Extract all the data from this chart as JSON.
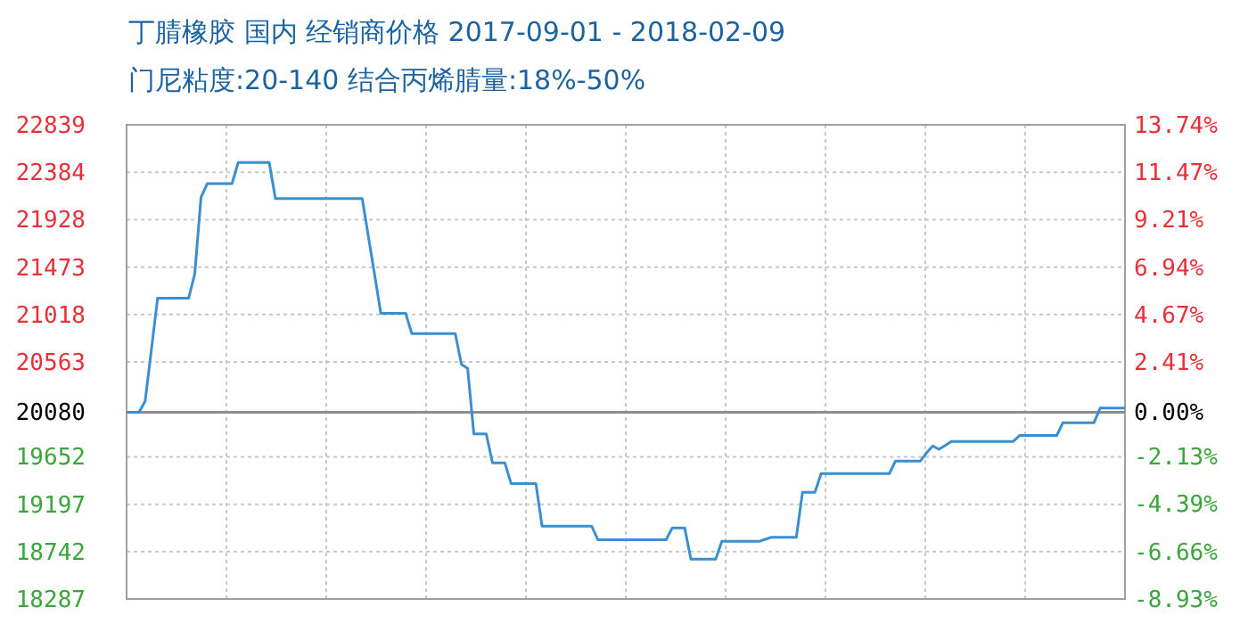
{
  "chart_data": {
    "type": "line",
    "title": "丁腈橡胶 国内 经销商价格 2017-09-01 - 2018-02-09",
    "subtitle": "门尼粘度:20-140 结合丙烯腈量:18%-50%",
    "categories": [
      null,
      null,
      null,
      null,
      null,
      null,
      null,
      null,
      null,
      null,
      null,
      null,
      null,
      null,
      null,
      null,
      null,
      null,
      null,
      null,
      null,
      null,
      null,
      null,
      null,
      null,
      null,
      null,
      null,
      null,
      null,
      null,
      null,
      null,
      null,
      null,
      null,
      null,
      null,
      null,
      null,
      null,
      null,
      null,
      null,
      null,
      null,
      null,
      null,
      null,
      null,
      null,
      null,
      null,
      null,
      null,
      null,
      null,
      null,
      null,
      null,
      null,
      null,
      null,
      null,
      null,
      null,
      null,
      null,
      null,
      null,
      null,
      null,
      null,
      null,
      null,
      null,
      null,
      null,
      null,
      null,
      null,
      null,
      null,
      null,
      null,
      null,
      null,
      null,
      null,
      null,
      null,
      null,
      null,
      null,
      null,
      null,
      null,
      null,
      null,
      null,
      null,
      null,
      null,
      null,
      null,
      null,
      null,
      null,
      null,
      null,
      null,
      null,
      null,
      null,
      null,
      null,
      null,
      null,
      null,
      null,
      null,
      null,
      null,
      null,
      null,
      null,
      null,
      null,
      null,
      null,
      null,
      null,
      null,
      null,
      null,
      null,
      null,
      null,
      null,
      null,
      null,
      null,
      null,
      null,
      null,
      null,
      null,
      null,
      null,
      null,
      null,
      null,
      null,
      null,
      null,
      null,
      null,
      null,
      null,
      null,
      null
    ],
    "series": [
      {
        "color": "#3a8fd0",
        "values": [
          20080,
          20080,
          20080,
          20187,
          20680,
          21174,
          21174,
          21174,
          21174,
          21174,
          21174,
          21410,
          22142,
          22274,
          22274,
          22274,
          22274,
          22274,
          22477,
          22477,
          22477,
          22477,
          22477,
          22477,
          22130,
          22130,
          22130,
          22130,
          22130,
          22130,
          22130,
          22130,
          22130,
          22130,
          22130,
          22130,
          22130,
          22130,
          22130,
          21765,
          21400,
          21030,
          21030,
          21030,
          21030,
          21030,
          20835,
          20835,
          20835,
          20835,
          20835,
          20835,
          20835,
          20835,
          20540,
          20500,
          19872,
          19872,
          19872,
          19595,
          19595,
          19595,
          19396,
          19396,
          19396,
          19396,
          19396,
          18987,
          18987,
          18987,
          18987,
          18987,
          18987,
          18987,
          18987,
          18987,
          18856,
          18856,
          18856,
          18856,
          18856,
          18856,
          18856,
          18856,
          18856,
          18856,
          18856,
          18856,
          18970,
          18970,
          18970,
          18670,
          18670,
          18670,
          18670,
          18670,
          18840,
          18840,
          18840,
          18840,
          18840,
          18840,
          18840,
          18860,
          18880,
          18880,
          18880,
          18880,
          18880,
          19311,
          19311,
          19311,
          19491,
          19491,
          19491,
          19491,
          19491,
          19491,
          19491,
          19491,
          19491,
          19491,
          19491,
          19491,
          19612,
          19612,
          19612,
          19612,
          19612,
          19690,
          19757,
          19724,
          19760,
          19800,
          19800,
          19800,
          19800,
          19800,
          19800,
          19800,
          19800,
          19800,
          19800,
          19800,
          19857,
          19857,
          19857,
          19857,
          19857,
          19857,
          19857,
          19980,
          19980,
          19980,
          19980,
          19980,
          19980,
          20120,
          20120,
          20120,
          20120,
          20120
        ]
      }
    ],
    "ylim": [
      18287,
      22839
    ],
    "yticks": [
      22839,
      22384,
      21928,
      21473,
      21018,
      20563,
      20080,
      19652,
      19197,
      18742,
      18287
    ],
    "y2lim": [
      -8.93,
      13.74
    ],
    "y2ticks": [
      {
        "value": 13.74,
        "label": "13.74%"
      },
      {
        "value": 11.47,
        "label": "11.47%"
      },
      {
        "value": 9.21,
        "label": "9.21%"
      },
      {
        "value": 6.94,
        "label": "6.94%"
      },
      {
        "value": 4.67,
        "label": "4.67%"
      },
      {
        "value": 2.41,
        "label": "2.41%"
      },
      {
        "value": 0,
        "label": "0.00%"
      },
      {
        "value": -2.13,
        "label": "-2.13%"
      },
      {
        "value": -4.39,
        "label": "-4.39%"
      },
      {
        "value": -6.66,
        "label": "-6.66%"
      },
      {
        "value": -8.93,
        "label": "-8.93%"
      }
    ],
    "ref_lines": [
      {
        "axis": "y",
        "value": 20080,
        "color": "#8c8c8c"
      }
    ],
    "grid": true,
    "marker": "none",
    "line_style": "solid"
  }
}
